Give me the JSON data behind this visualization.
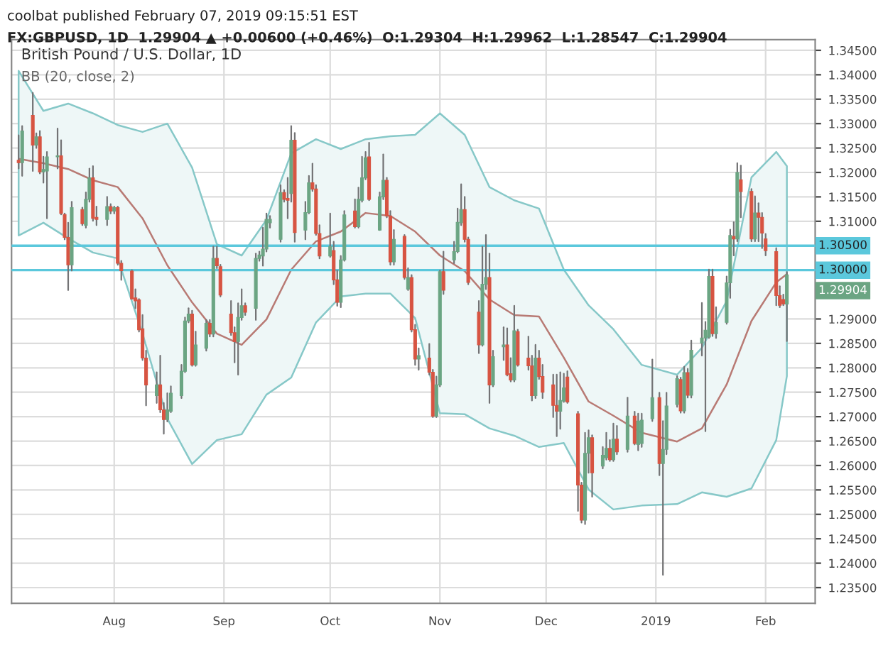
{
  "chart_data": {
    "type": "candlestick",
    "title": "British Pound / U.S. Dollar, 1D",
    "subtitle": "BB (20, close, 2)",
    "annotations": [
      "coolbat published February 07, 2019 09:15:51 EST",
      "FX:GBPUSD, 1D  1.29904 ▲ +0.00600 (+0.46%)  O:1.29304  H:1.29962  L:1.28547  C:1.29904",
      {
        "text": "1.29904",
        "x": "2019-02-07",
        "y": 1.29904
      }
    ],
    "x": [
      "2018-07-05",
      "2018-07-06",
      "2018-07-09",
      "2018-07-10",
      "2018-07-11",
      "2018-07-12",
      "2018-07-13",
      "2018-07-16",
      "2018-07-17",
      "2018-07-18",
      "2018-07-19",
      "2018-07-20",
      "2018-07-23",
      "2018-07-24",
      "2018-07-25",
      "2018-07-26",
      "2018-07-27",
      "2018-07-30",
      "2018-07-31",
      "2018-08-01",
      "2018-08-02",
      "2018-08-03",
      "2018-08-06",
      "2018-08-07",
      "2018-08-08",
      "2018-08-09",
      "2018-08-10",
      "2018-08-13",
      "2018-08-14",
      "2018-08-15",
      "2018-08-16",
      "2018-08-17",
      "2018-08-20",
      "2018-08-21",
      "2018-08-22",
      "2018-08-23",
      "2018-08-24",
      "2018-08-27",
      "2018-08-28",
      "2018-08-29",
      "2018-08-30",
      "2018-08-31",
      "2018-09-03",
      "2018-09-04",
      "2018-09-05",
      "2018-09-06",
      "2018-09-07",
      "2018-09-10",
      "2018-09-11",
      "2018-09-12",
      "2018-09-13",
      "2018-09-14",
      "2018-09-17",
      "2018-09-18",
      "2018-09-19",
      "2018-09-20",
      "2018-09-21",
      "2018-09-24",
      "2018-09-25",
      "2018-09-26",
      "2018-09-27",
      "2018-09-28",
      "2018-10-01",
      "2018-10-02",
      "2018-10-03",
      "2018-10-04",
      "2018-10-05",
      "2018-10-08",
      "2018-10-09",
      "2018-10-10",
      "2018-10-11",
      "2018-10-12",
      "2018-10-15",
      "2018-10-16",
      "2018-10-17",
      "2018-10-18",
      "2018-10-19",
      "2018-10-22",
      "2018-10-23",
      "2018-10-24",
      "2018-10-25",
      "2018-10-26",
      "2018-10-29",
      "2018-10-30",
      "2018-10-31",
      "2018-11-01",
      "2018-11-02",
      "2018-11-05",
      "2018-11-06",
      "2018-11-07",
      "2018-11-08",
      "2018-11-09",
      "2018-11-12",
      "2018-11-13",
      "2018-11-14",
      "2018-11-15",
      "2018-11-16",
      "2018-11-19",
      "2018-11-20",
      "2018-11-21",
      "2018-11-22",
      "2018-11-23",
      "2018-11-26",
      "2018-11-27",
      "2018-11-28",
      "2018-11-29",
      "2018-11-30",
      "2018-12-03",
      "2018-12-04",
      "2018-12-05",
      "2018-12-06",
      "2018-12-07",
      "2018-12-10",
      "2018-12-11",
      "2018-12-12",
      "2018-12-13",
      "2018-12-14",
      "2018-12-17",
      "2018-12-18",
      "2018-12-19",
      "2018-12-20",
      "2018-12-21",
      "2018-12-24",
      "2018-12-26",
      "2018-12-27",
      "2018-12-28",
      "2018-12-31",
      "2019-01-02",
      "2019-01-03",
      "2019-01-04",
      "2019-01-07",
      "2019-01-08",
      "2019-01-09",
      "2019-01-10",
      "2019-01-11",
      "2019-01-14",
      "2019-01-15",
      "2019-01-16",
      "2019-01-17",
      "2019-01-18",
      "2019-01-21",
      "2019-01-22",
      "2019-01-23",
      "2019-01-24",
      "2019-01-25",
      "2019-01-28",
      "2019-01-29",
      "2019-01-30",
      "2019-01-31",
      "2019-02-01",
      "2019-02-04",
      "2019-02-05",
      "2019-02-06",
      "2019-02-07"
    ],
    "ohlc": [
      [
        1.3225,
        1.3276,
        1.3208,
        1.322
      ],
      [
        1.322,
        1.3295,
        1.3193,
        1.3285
      ],
      [
        1.3317,
        1.3363,
        1.3203,
        1.3256
      ],
      [
        1.3256,
        1.328,
        1.325,
        1.3273
      ],
      [
        1.3273,
        1.3285,
        1.3198,
        1.3201
      ],
      [
        1.3201,
        1.3232,
        1.3179,
        1.3206
      ],
      [
        1.3203,
        1.3242,
        1.3106,
        1.3232
      ],
      [
        1.3232,
        1.329,
        1.3208,
        1.3234
      ],
      [
        1.3234,
        1.3266,
        1.3114,
        1.3116
      ],
      [
        1.3114,
        1.3116,
        1.3063,
        1.3067
      ],
      [
        1.3067,
        1.3097,
        1.2959,
        1.3011
      ],
      [
        1.3011,
        1.314,
        1.2999,
        1.3128
      ],
      [
        1.3124,
        1.3128,
        1.3092,
        1.3095
      ],
      [
        1.3092,
        1.3159,
        1.3087,
        1.3145
      ],
      [
        1.3145,
        1.3208,
        1.314,
        1.3189
      ],
      [
        1.3189,
        1.3213,
        1.3101,
        1.3106
      ],
      [
        1.3108,
        1.313,
        1.3092,
        1.3104
      ],
      [
        1.3104,
        1.315,
        1.3092,
        1.313
      ],
      [
        1.313,
        1.3135,
        1.3116,
        1.3121
      ],
      [
        1.3121,
        1.313,
        1.3116,
        1.3128
      ],
      [
        1.3128,
        1.313,
        1.3011,
        1.3014
      ],
      [
        1.3014,
        1.3019,
        1.298,
        1.2999
      ],
      [
        1.2998,
        1.3,
        1.2941,
        1.2941
      ],
      [
        1.2943,
        1.2961,
        1.2922,
        1.2937
      ],
      [
        1.2939,
        1.2941,
        1.2874,
        1.2878
      ],
      [
        1.288,
        1.2908,
        1.2816,
        1.282
      ],
      [
        1.282,
        1.2835,
        1.2723,
        1.2765
      ],
      [
        1.2743,
        1.2791,
        1.2728,
        1.2765
      ],
      [
        1.2765,
        1.2825,
        1.2709,
        1.2714
      ],
      [
        1.2714,
        1.2728,
        1.2665,
        1.2694
      ],
      [
        1.2694,
        1.2748,
        1.269,
        1.2714
      ],
      [
        1.2711,
        1.2762,
        1.2709,
        1.2748
      ],
      [
        1.2743,
        1.2806,
        1.2738,
        1.2793
      ],
      [
        1.2793,
        1.2903,
        1.2791,
        1.2896
      ],
      [
        1.2896,
        1.2922,
        1.2893,
        1.291
      ],
      [
        1.291,
        1.2917,
        1.2804,
        1.2806
      ],
      [
        1.2806,
        1.2874,
        1.2804,
        1.2847
      ],
      [
        1.284,
        1.2898,
        1.2835,
        1.2891
      ],
      [
        1.2891,
        1.2898,
        1.2864,
        1.2869
      ],
      [
        1.2869,
        1.3048,
        1.2864,
        1.3024
      ],
      [
        1.3024,
        1.3048,
        1.3004,
        1.3009
      ],
      [
        1.3007,
        1.3011,
        1.2946,
        1.2949
      ],
      [
        1.291,
        1.2937,
        1.2867,
        1.2872
      ],
      [
        1.2872,
        1.2883,
        1.2811,
        1.2854
      ],
      [
        1.2854,
        1.2932,
        1.2786,
        1.2903
      ],
      [
        1.2903,
        1.2961,
        1.2898,
        1.2927
      ],
      [
        1.2927,
        1.2932,
        1.2908,
        1.2914
      ],
      [
        1.2922,
        1.3034,
        1.2898,
        1.3024
      ],
      [
        1.3024,
        1.3038,
        1.3019,
        1.3031
      ],
      [
        1.3029,
        1.3087,
        1.3009,
        1.3043
      ],
      [
        1.3043,
        1.3116,
        1.3038,
        1.3104
      ],
      [
        1.3097,
        1.3111,
        1.3087,
        1.3104
      ],
      [
        1.3063,
        1.3174,
        1.3058,
        1.3159
      ],
      [
        1.3159,
        1.3164,
        1.314,
        1.3145
      ],
      [
        1.3147,
        1.3189,
        1.3106,
        1.3143
      ],
      [
        1.3157,
        1.3295,
        1.314,
        1.3266
      ],
      [
        1.3266,
        1.3281,
        1.3058,
        1.3077
      ],
      [
        1.3082,
        1.314,
        1.3063,
        1.3118
      ],
      [
        1.3118,
        1.3193,
        1.3116,
        1.3179
      ],
      [
        1.3179,
        1.3218,
        1.3162,
        1.3166
      ],
      [
        1.3166,
        1.3174,
        1.3072,
        1.3075
      ],
      [
        1.3075,
        1.3092,
        1.3024,
        1.3029
      ],
      [
        1.3029,
        1.3116,
        1.3027,
        1.3048
      ],
      [
        1.304,
        1.3058,
        1.2971,
        1.298
      ],
      [
        1.298,
        1.2999,
        1.2927,
        1.2934
      ],
      [
        1.2934,
        1.3029,
        1.2924,
        1.3021
      ],
      [
        1.3021,
        1.3121,
        1.3019,
        1.3113
      ],
      [
        1.3121,
        1.3145,
        1.3087,
        1.3089
      ],
      [
        1.3089,
        1.3169,
        1.3087,
        1.3145
      ],
      [
        1.3143,
        1.3232,
        1.314,
        1.3189
      ],
      [
        1.3189,
        1.3242,
        1.3186,
        1.323
      ],
      [
        1.3232,
        1.3261,
        1.3143,
        1.3145
      ],
      [
        1.3082,
        1.3159,
        1.3082,
        1.315
      ],
      [
        1.315,
        1.3237,
        1.3145,
        1.3184
      ],
      [
        1.3184,
        1.3189,
        1.3108,
        1.3111
      ],
      [
        1.3111,
        1.3121,
        1.3011,
        1.3017
      ],
      [
        1.3017,
        1.3082,
        1.3011,
        1.3063
      ],
      [
        1.3069,
        1.3072,
        1.2982,
        1.2985
      ],
      [
        1.2961,
        1.3004,
        1.2959,
        1.2985
      ],
      [
        1.2985,
        1.299,
        1.2874,
        1.2878
      ],
      [
        1.2878,
        1.2888,
        1.2806,
        1.2818
      ],
      [
        1.2818,
        1.284,
        1.2796,
        1.2825
      ],
      [
        1.282,
        1.2849,
        1.2786,
        1.2791
      ],
      [
        1.2791,
        1.2796,
        1.2699,
        1.2701
      ],
      [
        1.2701,
        1.2782,
        1.2699,
        1.2765
      ],
      [
        1.2765,
        1.2999,
        1.2762,
        1.2997
      ],
      [
        1.2997,
        1.3038,
        1.2951,
        1.2959
      ],
      [
        1.3021,
        1.3058,
        1.3014,
        1.3038
      ],
      [
        1.3038,
        1.3126,
        1.3036,
        1.3098
      ],
      [
        1.3097,
        1.3176,
        1.3092,
        1.3124
      ],
      [
        1.3124,
        1.315,
        1.3058,
        1.3063
      ],
      [
        1.3063,
        1.3067,
        1.2971,
        1.2975
      ],
      [
        1.2914,
        1.2937,
        1.283,
        1.2847
      ],
      [
        1.2847,
        1.3048,
        1.2845,
        1.2971
      ],
      [
        1.2971,
        1.3072,
        1.2961,
        1.2985
      ],
      [
        1.2985,
        1.3034,
        1.2728,
        1.2765
      ],
      [
        1.2765,
        1.2835,
        1.2762,
        1.2823
      ],
      [
        1.2843,
        1.2883,
        1.2816,
        1.2847
      ],
      [
        1.2847,
        1.2881,
        1.2784,
        1.2786
      ],
      [
        1.2788,
        1.282,
        1.2772,
        1.2775
      ],
      [
        1.2775,
        1.2927,
        1.2772,
        1.2876
      ],
      [
        1.2874,
        1.2878,
        1.2804,
        1.2806
      ],
      [
        1.282,
        1.2864,
        1.2796,
        1.2804
      ],
      [
        1.2804,
        1.2825,
        1.2733,
        1.2743
      ],
      [
        1.2743,
        1.2847,
        1.2738,
        1.282
      ],
      [
        1.282,
        1.2835,
        1.2777,
        1.2782
      ],
      [
        1.2782,
        1.2806,
        1.2738,
        1.275
      ],
      [
        1.2765,
        1.2786,
        1.2699,
        1.2723
      ],
      [
        1.2723,
        1.2786,
        1.266,
        1.2711
      ],
      [
        1.2711,
        1.2791,
        1.2675,
        1.2733
      ],
      [
        1.2732,
        1.2788,
        1.273,
        1.2759
      ],
      [
        1.2781,
        1.2793,
        1.2728,
        1.273
      ],
      [
        1.2706,
        1.271,
        1.2507,
        1.256
      ],
      [
        1.256,
        1.2565,
        1.2483,
        1.2488
      ],
      [
        1.2488,
        1.2667,
        1.248,
        1.2625
      ],
      [
        1.2625,
        1.2672,
        1.2585,
        1.2657
      ],
      [
        1.2657,
        1.2662,
        1.2536,
        1.2585
      ],
      [
        1.2599,
        1.2638,
        1.2594,
        1.2621
      ],
      [
        1.2616,
        1.2667,
        1.2612,
        1.2635
      ],
      [
        1.2635,
        1.2652,
        1.2609,
        1.2612
      ],
      [
        1.2612,
        1.2686,
        1.2609,
        1.2654
      ],
      [
        1.2654,
        1.2681,
        1.2623,
        1.2628
      ],
      [
        1.2633,
        1.2739,
        1.2628,
        1.2701
      ],
      [
        1.2701,
        1.271,
        1.2643,
        1.2645
      ],
      [
        1.2643,
        1.2706,
        1.2631,
        1.2691
      ],
      [
        1.2645,
        1.2706,
        1.2638,
        1.2693
      ],
      [
        1.2696,
        1.2817,
        1.2691,
        1.2739
      ],
      [
        1.2739,
        1.2749,
        1.258,
        1.2604
      ],
      [
        1.2604,
        1.2691,
        1.2376,
        1.2633
      ],
      [
        1.2633,
        1.2749,
        1.2623,
        1.2722
      ],
      [
        1.2725,
        1.2783,
        1.272,
        1.2778
      ],
      [
        1.2776,
        1.278,
        1.2708,
        1.2712
      ],
      [
        1.2712,
        1.2802,
        1.2708,
        1.279
      ],
      [
        1.279,
        1.2798,
        1.2739,
        1.2744
      ],
      [
        1.2744,
        1.2856,
        1.2739,
        1.2836
      ],
      [
        1.2851,
        1.2933,
        1.2825,
        1.2861
      ],
      [
        1.2861,
        1.2894,
        1.267,
        1.2877
      ],
      [
        1.2863,
        1.3001,
        1.2861,
        1.2987
      ],
      [
        1.2987,
        1.3001,
        1.2865,
        1.287
      ],
      [
        1.287,
        1.2924,
        1.2861,
        1.2893
      ],
      [
        1.2893,
        1.2987,
        1.289,
        1.2974
      ],
      [
        1.2974,
        1.3083,
        1.2943,
        1.3071
      ],
      [
        1.3069,
        1.3098,
        1.303,
        1.3064
      ],
      [
        1.3064,
        1.3219,
        1.3059,
        1.32
      ],
      [
        1.3185,
        1.3214,
        1.3108,
        1.3161
      ],
      [
        1.3161,
        1.3166,
        1.3059,
        1.3064
      ],
      [
        1.3064,
        1.3151,
        1.3059,
        1.3117
      ],
      [
        1.3117,
        1.3137,
        1.3059,
        1.3108
      ],
      [
        1.3108,
        1.3117,
        1.3045,
        1.3076
      ],
      [
        1.3064,
        1.3074,
        1.303,
        1.304
      ],
      [
        1.3038,
        1.3045,
        1.2928,
        1.2948
      ],
      [
        1.2948,
        1.2967,
        1.2924,
        1.2928
      ],
      [
        1.294,
        1.295,
        1.2928,
        1.2931
      ],
      [
        1.29304,
        1.29962,
        1.28547,
        1.29904
      ]
    ],
    "series": [
      {
        "type": "line",
        "color": "#b87a74",
        "x": [
          "2018-07-05",
          "2018-07-12",
          "2018-07-19",
          "2018-07-26",
          "2018-08-02",
          "2018-08-09",
          "2018-08-16",
          "2018-08-23",
          "2018-08-30",
          "2018-09-06",
          "2018-09-13",
          "2018-09-20",
          "2018-09-27",
          "2018-10-04",
          "2018-10-11",
          "2018-10-18",
          "2018-10-25",
          "2018-11-01",
          "2018-11-08",
          "2018-11-15",
          "2018-11-22",
          "2018-11-29",
          "2018-12-06",
          "2018-12-13",
          "2018-12-20",
          "2018-12-28",
          "2019-01-07",
          "2019-01-14",
          "2019-01-21",
          "2019-01-28",
          "2019-02-04",
          "2019-02-07"
        ],
        "values": [
          1.3228,
          1.3219,
          1.3207,
          1.3184,
          1.317,
          1.3106,
          1.301,
          1.2934,
          1.287,
          1.2847,
          1.2899,
          1.3001,
          1.3059,
          1.3079,
          1.3117,
          1.3111,
          1.3079,
          1.303,
          1.2998,
          1.294,
          1.2908,
          1.2905,
          1.2821,
          1.2731,
          1.2702,
          1.2667,
          1.2649,
          1.2676,
          1.2766,
          1.2896,
          1.2975,
          1.2992
        ],
        "lower": [
          1.3071,
          1.3097,
          1.3065,
          1.3036,
          1.3024,
          1.287,
          1.2696,
          1.2603,
          1.2652,
          1.2664,
          1.2745,
          1.278,
          1.2893,
          1.2946,
          1.2952,
          1.2952,
          1.2902,
          1.2707,
          1.2705,
          1.2676,
          1.2661,
          1.2638,
          1.2646,
          1.2551,
          1.251,
          1.2518,
          1.2521,
          1.2545,
          1.2536,
          1.2553,
          1.2652,
          1.2783
        ],
        "upper": [
          1.3408,
          1.3326,
          1.3341,
          1.3321,
          1.3297,
          1.3283,
          1.33,
          1.321,
          1.3053,
          1.303,
          1.3103,
          1.3239,
          1.3268,
          1.3248,
          1.3268,
          1.3274,
          1.3277,
          1.3321,
          1.3277,
          1.317,
          1.3143,
          1.3126,
          1.3001,
          1.2928,
          1.2879,
          1.2806,
          1.2786,
          1.2841,
          1.2937,
          1.319,
          1.3242,
          1.3213
        ]
      }
    ],
    "ref_lines": [
      {
        "axis": "y",
        "value": 1.305,
        "label": "1.30500",
        "color": "#5bc8dc"
      },
      {
        "axis": "y",
        "value": 1.3,
        "label": "1.30000",
        "color": "#5bc8dc"
      }
    ],
    "xlim": [
      "2018-07-03",
      "2019-02-15"
    ],
    "xticks": [
      {
        "value": "2018-08-01",
        "label": "Aug"
      },
      {
        "value": "2018-09-01",
        "label": "Sep"
      },
      {
        "value": "2018-10-01",
        "label": "Oct"
      },
      {
        "value": "2018-11-01",
        "label": "Nov"
      },
      {
        "value": "2018-12-01",
        "label": "Dec"
      },
      {
        "value": "2019-01-01",
        "label": "2019"
      },
      {
        "value": "2019-02-01",
        "label": "Feb"
      }
    ],
    "ylim": [
      1.2318,
      1.3472
    ],
    "yticks": [
      {
        "value": 1.235,
        "label": "1.23500"
      },
      {
        "value": 1.24,
        "label": "1.24000"
      },
      {
        "value": 1.245,
        "label": "1.24500"
      },
      {
        "value": 1.25,
        "label": "1.25000"
      },
      {
        "value": 1.255,
        "label": "1.25500"
      },
      {
        "value": 1.26,
        "label": "1.26000"
      },
      {
        "value": 1.265,
        "label": "1.26500"
      },
      {
        "value": 1.27,
        "label": "1.27000"
      },
      {
        "value": 1.275,
        "label": "1.27500"
      },
      {
        "value": 1.28,
        "label": "1.28000"
      },
      {
        "value": 1.285,
        "label": "1.28500"
      },
      {
        "value": 1.29,
        "label": "1.29000"
      },
      {
        "value": 1.31,
        "label": "1.31000"
      },
      {
        "value": 1.315,
        "label": "1.31500"
      },
      {
        "value": 1.32,
        "label": "1.32000"
      },
      {
        "value": 1.325,
        "label": "1.32500"
      },
      {
        "value": 1.33,
        "label": "1.33000"
      },
      {
        "value": 1.335,
        "label": "1.33500"
      },
      {
        "value": 1.34,
        "label": "1.34000"
      },
      {
        "value": 1.345,
        "label": "1.34500"
      }
    ],
    "grid": true
  }
}
